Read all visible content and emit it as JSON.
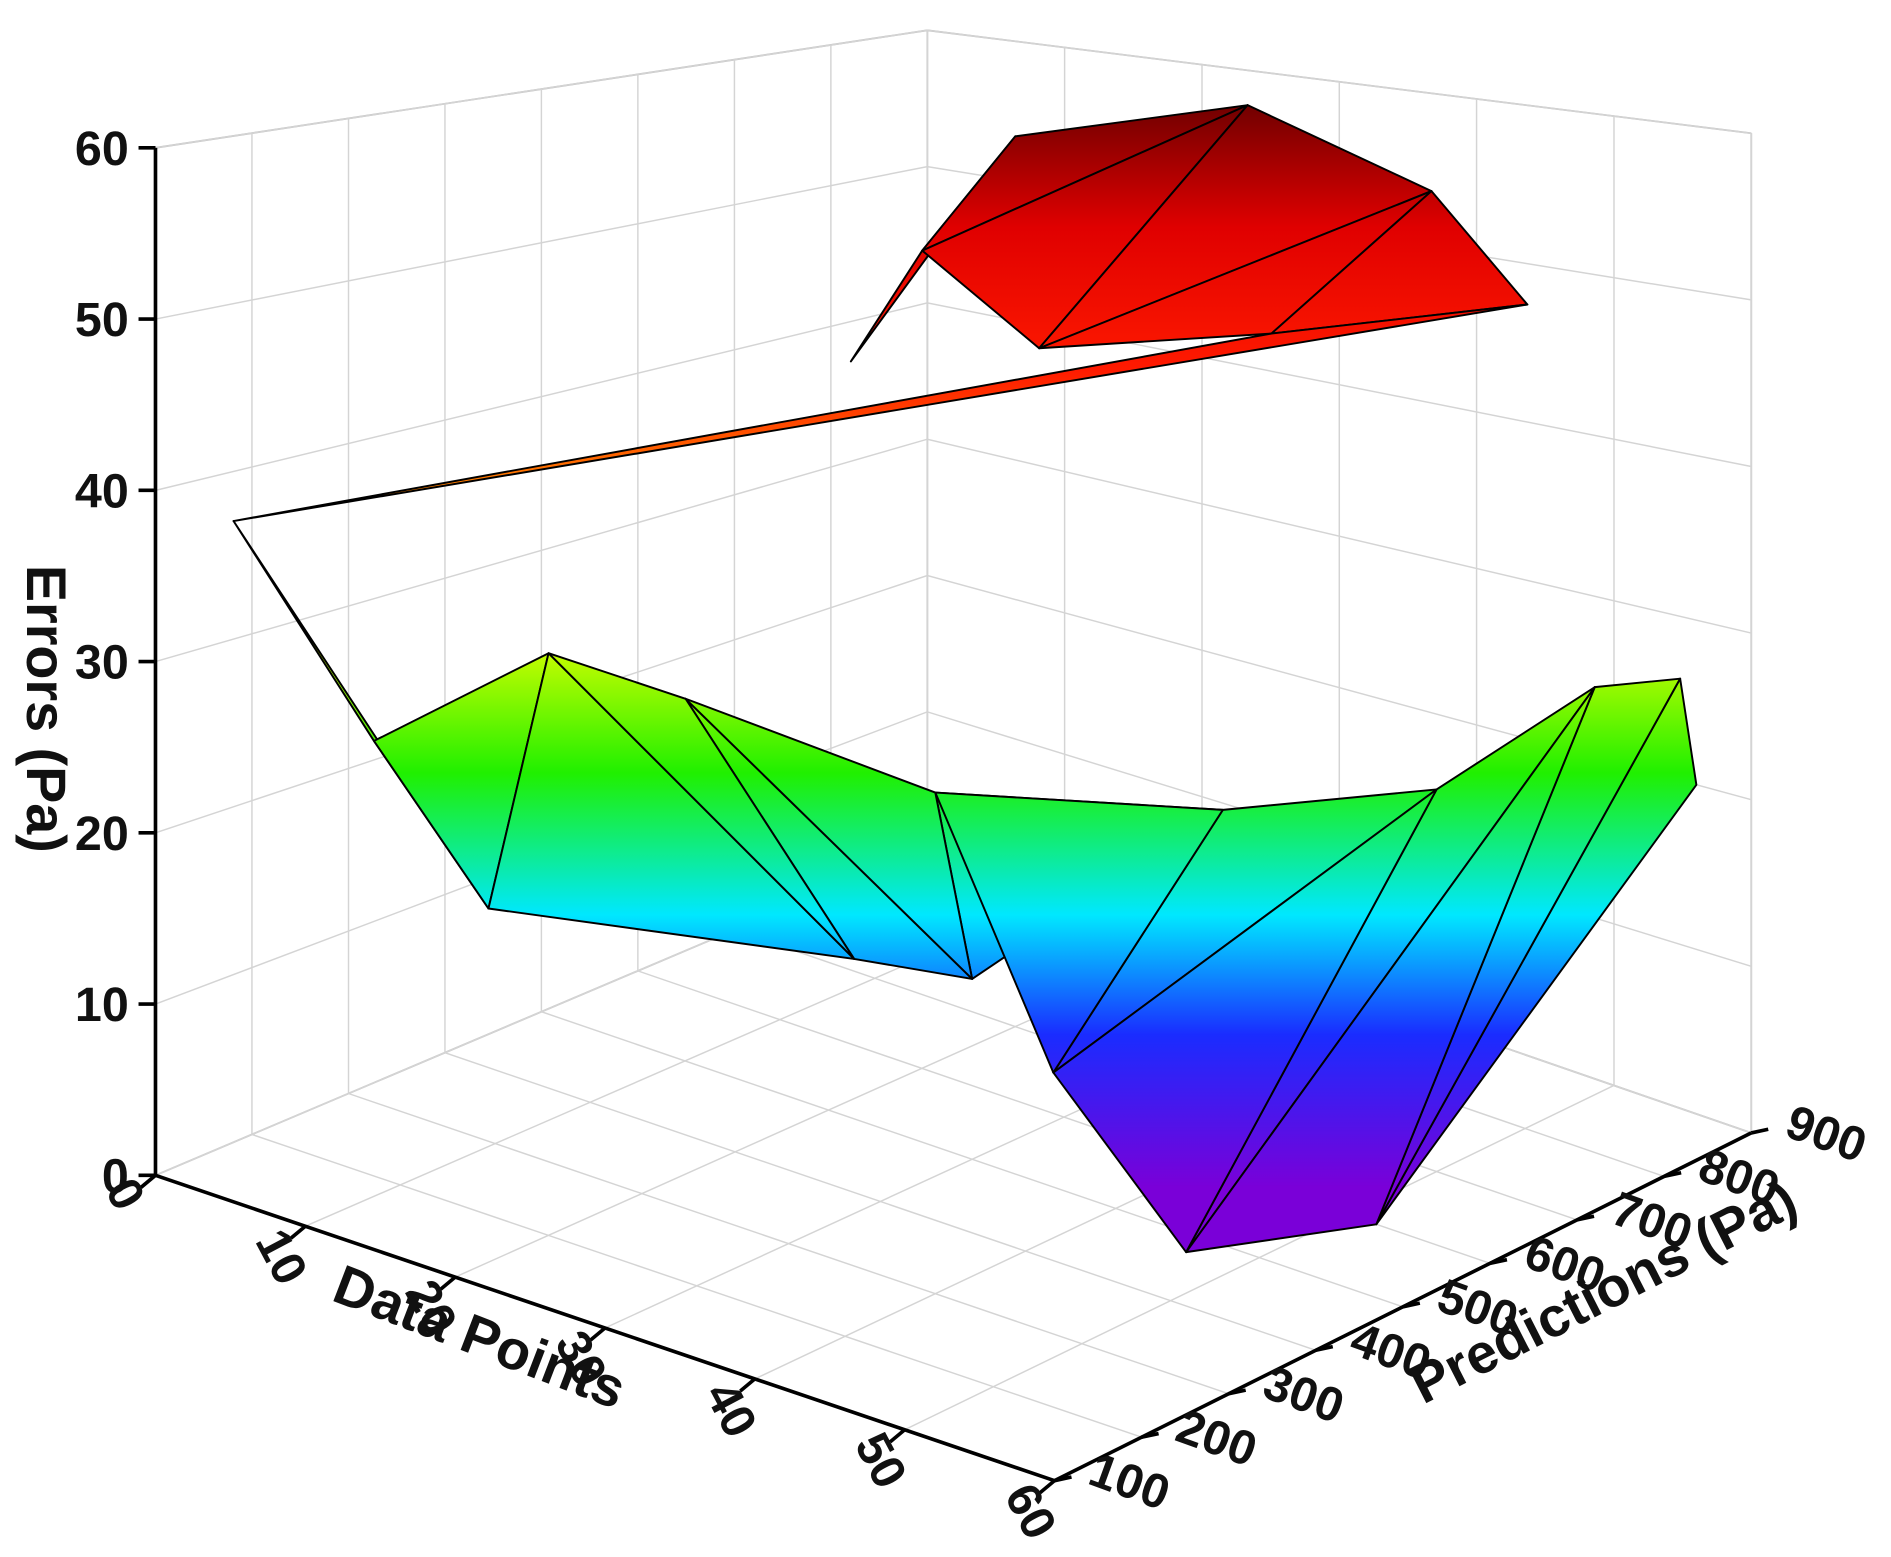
{
  "chart_data": {
    "type": "surface3d",
    "x_label": "Data Points",
    "y_label": "Predictions (Pa)",
    "z_label": "Errors (Pa)",
    "xlim": [
      0,
      60
    ],
    "ylim": [
      100,
      900
    ],
    "zlim": [
      0,
      60
    ],
    "xticks": [
      0,
      10,
      20,
      30,
      40,
      50,
      60
    ],
    "yticks": [
      100,
      200,
      300,
      400,
      500,
      600,
      700,
      800,
      900
    ],
    "zticks": [
      0,
      10,
      20,
      30,
      40,
      50,
      60
    ],
    "grid": true,
    "x": [
      15,
      20,
      10,
      30,
      25,
      40,
      35,
      45,
      2,
      5,
      3,
      20,
      25,
      28,
      30,
      40,
      38,
      45,
      50,
      48,
      55,
      52,
      58,
      56
    ],
    "y": [
      600,
      700,
      750,
      800,
      650,
      850,
      750,
      880,
      150,
      250,
      400,
      200,
      450,
      220,
      500,
      300,
      650,
      350,
      700,
      450,
      800,
      600,
      850,
      900
    ],
    "z": [
      44,
      58,
      48,
      60,
      46,
      55,
      47,
      48,
      38,
      24,
      10,
      34,
      12,
      33,
      11,
      29,
      20,
      13,
      23,
      1,
      28,
      0,
      28,
      20
    ]
  }
}
